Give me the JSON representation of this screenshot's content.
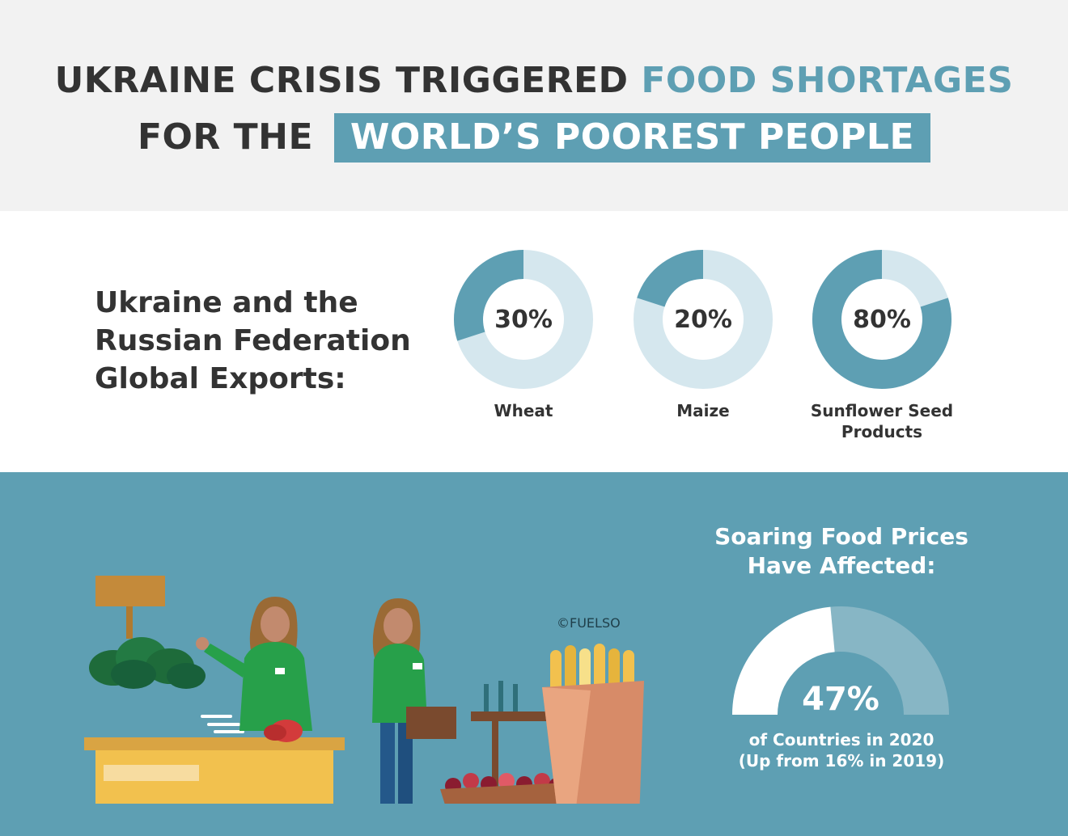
{
  "header": {
    "line1_main": "UKRAINE CRISIS TRIGGERED",
    "line1_accent": "FOOD SHORTAGES",
    "line2_main": "FOR THE",
    "line2_highlight": "WORLD’S POOREST PEOPLE"
  },
  "exports": {
    "label_line1": "Ukraine and the",
    "label_line2": "Russian Federation",
    "label_line3": "Global Exports:"
  },
  "illustration": {
    "credit": "©FUELSO",
    "icon": "market-vendors-illustration"
  },
  "prices": {
    "title_line1": "Soaring Food Prices",
    "title_line2": "Have Affected:",
    "subtitle_line1": "of Countries in 2020",
    "subtitle_line2": "(Up from 16% in 2019)"
  },
  "colors": {
    "accent": "#5e9fb3",
    "donut_fill": "#5e9fb3",
    "donut_track": "#d5e7ee",
    "gauge_fill": "#ffffff",
    "gauge_track": "#87b6c5",
    "text_dark": "#333333"
  },
  "chart_data": [
    {
      "type": "pie",
      "variant": "donut",
      "name": "wheat",
      "value": 30,
      "value_label": "30%",
      "category": "Wheat"
    },
    {
      "type": "pie",
      "variant": "donut",
      "name": "maize",
      "value": 20,
      "value_label": "20%",
      "category": "Maize"
    },
    {
      "type": "pie",
      "variant": "donut",
      "name": "sunflower",
      "value": 80,
      "value_label": "80%",
      "category_line1": "Sunflower Seed",
      "category_line2": "Products"
    },
    {
      "type": "pie",
      "variant": "semi-donut",
      "name": "countries",
      "value": 47,
      "value_label": "47%"
    }
  ]
}
